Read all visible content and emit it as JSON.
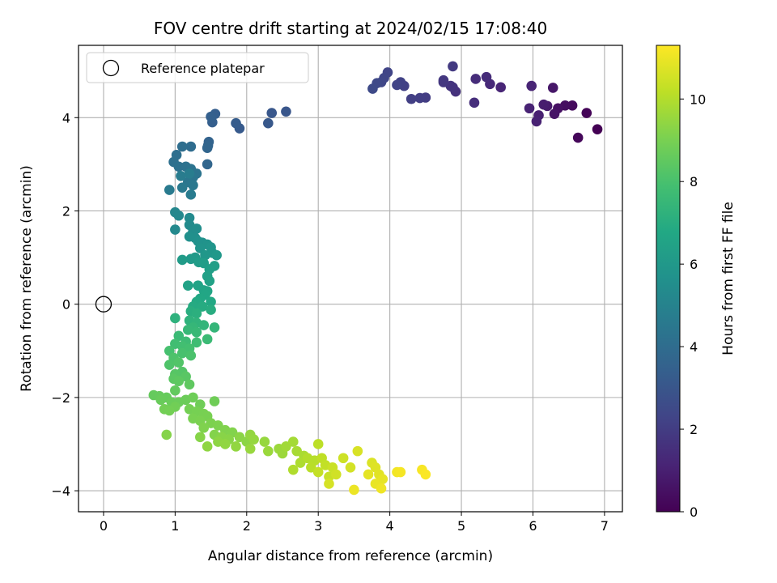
{
  "chart_data": {
    "type": "scatter",
    "title": "FOV centre drift starting at 2024/02/15 17:08:40",
    "xlabel": "Angular distance from reference (arcmin)",
    "ylabel": "Rotation from reference (arcmin)",
    "xlim": [
      -0.35,
      7.25
    ],
    "ylim": [
      -4.45,
      5.55
    ],
    "xticks": [
      0,
      1,
      2,
      3,
      4,
      5,
      6,
      7
    ],
    "yticks": [
      -4,
      -2,
      0,
      2,
      4
    ],
    "grid": true,
    "legend": {
      "placement": "top-left",
      "entries": [
        "Reference platepar"
      ]
    },
    "reference_point": {
      "x": 0,
      "y": 0,
      "label": "Reference platepar"
    },
    "colorbar": {
      "label": "Hours from first FF file",
      "colormap": "viridis",
      "range": [
        0,
        11.3
      ],
      "ticks": [
        0,
        2,
        4,
        6,
        8,
        10
      ]
    },
    "points": [
      [
        6.9,
        3.75,
        0.0
      ],
      [
        6.75,
        4.1,
        0.1
      ],
      [
        6.63,
        3.57,
        0.2
      ],
      [
        6.55,
        4.26,
        0.3
      ],
      [
        6.45,
        4.26,
        0.4
      ],
      [
        6.35,
        4.2,
        0.5
      ],
      [
        6.3,
        4.08,
        0.6
      ],
      [
        6.28,
        4.64,
        0.7
      ],
      [
        6.2,
        4.25,
        0.8
      ],
      [
        6.15,
        4.28,
        0.9
      ],
      [
        6.08,
        4.05,
        1.0
      ],
      [
        6.05,
        3.92,
        1.05
      ],
      [
        5.95,
        4.2,
        1.1
      ],
      [
        5.98,
        4.68,
        1.15
      ],
      [
        5.55,
        4.65,
        1.2
      ],
      [
        5.4,
        4.72,
        1.3
      ],
      [
        5.35,
        4.87,
        1.4
      ],
      [
        5.2,
        4.83,
        1.45
      ],
      [
        5.18,
        4.32,
        1.5
      ],
      [
        4.92,
        4.56,
        1.6
      ],
      [
        4.88,
        4.65,
        1.65
      ],
      [
        4.85,
        4.68,
        1.7
      ],
      [
        4.75,
        4.76,
        1.8
      ],
      [
        4.75,
        4.8,
        1.85
      ],
      [
        4.88,
        5.1,
        1.9
      ],
      [
        4.5,
        4.43,
        2.0
      ],
      [
        4.42,
        4.42,
        2.05
      ],
      [
        4.3,
        4.4,
        2.1
      ],
      [
        4.2,
        4.68,
        2.15
      ],
      [
        4.15,
        4.76,
        2.2
      ],
      [
        4.1,
        4.7,
        2.25
      ],
      [
        3.97,
        4.97,
        2.3
      ],
      [
        3.92,
        4.85,
        2.35
      ],
      [
        3.88,
        4.76,
        2.4
      ],
      [
        3.82,
        4.74,
        2.45
      ],
      [
        3.76,
        4.62,
        2.5
      ],
      [
        2.55,
        4.13,
        3.0
      ],
      [
        2.35,
        4.1,
        3.05
      ],
      [
        2.3,
        3.88,
        3.1
      ],
      [
        1.9,
        3.77,
        3.2
      ],
      [
        1.85,
        3.88,
        3.25
      ],
      [
        1.56,
        4.08,
        3.35
      ],
      [
        1.52,
        3.9,
        3.4
      ],
      [
        1.5,
        4.02,
        3.45
      ],
      [
        1.47,
        3.48,
        3.55
      ],
      [
        1.46,
        3.4,
        3.6
      ],
      [
        1.45,
        3.35,
        3.65
      ],
      [
        1.45,
        3.0,
        3.7
      ],
      [
        1.22,
        3.38,
        4.0
      ],
      [
        1.1,
        3.38,
        4.05
      ],
      [
        1.02,
        3.2,
        4.1
      ],
      [
        0.98,
        3.05,
        4.15
      ],
      [
        1.05,
        2.95,
        4.2
      ],
      [
        1.15,
        2.95,
        4.25
      ],
      [
        1.22,
        2.9,
        4.3
      ],
      [
        1.3,
        2.8,
        4.35
      ],
      [
        1.25,
        2.72,
        4.4
      ],
      [
        1.18,
        2.62,
        4.45
      ],
      [
        1.25,
        2.55,
        4.5
      ],
      [
        1.1,
        2.5,
        4.55
      ],
      [
        0.92,
        2.45,
        4.6
      ],
      [
        1.22,
        2.35,
        4.65
      ],
      [
        1.08,
        2.75,
        4.7
      ],
      [
        1.2,
        2.8,
        4.75
      ],
      [
        1.0,
        1.97,
        5.2
      ],
      [
        1.05,
        1.9,
        5.25
      ],
      [
        1.0,
        1.6,
        5.3
      ],
      [
        1.2,
        1.85,
        5.35
      ],
      [
        1.2,
        1.7,
        5.4
      ],
      [
        1.25,
        1.55,
        5.45
      ],
      [
        1.3,
        1.62,
        5.5
      ],
      [
        1.28,
        1.42,
        5.55
      ],
      [
        1.2,
        1.45,
        5.6
      ],
      [
        1.32,
        1.35,
        5.65
      ],
      [
        1.38,
        1.32,
        5.7
      ],
      [
        1.45,
        1.28,
        5.75
      ],
      [
        1.35,
        1.2,
        5.8
      ],
      [
        1.5,
        1.22,
        5.85
      ],
      [
        1.52,
        1.1,
        5.9
      ],
      [
        1.42,
        1.05,
        5.95
      ],
      [
        1.58,
        1.05,
        6.0
      ],
      [
        1.28,
        1.0,
        6.05
      ],
      [
        1.22,
        0.97,
        6.1
      ],
      [
        1.1,
        0.95,
        6.15
      ],
      [
        1.33,
        0.9,
        6.2
      ],
      [
        1.4,
        0.88,
        6.25
      ],
      [
        1.55,
        0.82,
        6.3
      ],
      [
        1.48,
        0.75,
        6.35
      ],
      [
        1.45,
        0.6,
        6.4
      ],
      [
        1.48,
        0.5,
        6.45
      ],
      [
        1.18,
        0.4,
        6.5
      ],
      [
        1.32,
        0.4,
        6.55
      ],
      [
        1.4,
        0.3,
        6.6
      ],
      [
        1.45,
        0.28,
        6.65
      ],
      [
        1.42,
        0.2,
        6.7
      ],
      [
        1.35,
        0.12,
        6.75
      ],
      [
        1.5,
        0.05,
        6.8
      ],
      [
        1.3,
        0.05,
        6.85
      ],
      [
        1.25,
        -0.05,
        6.9
      ],
      [
        1.38,
        -0.05,
        6.95
      ],
      [
        1.5,
        -0.12,
        7.0
      ],
      [
        1.22,
        -0.15,
        7.05
      ],
      [
        1.3,
        -0.2,
        7.1
      ],
      [
        1.0,
        -0.3,
        7.2
      ],
      [
        1.2,
        -0.35,
        7.25
      ],
      [
        1.3,
        -0.4,
        7.3
      ],
      [
        1.4,
        -0.45,
        7.35
      ],
      [
        1.55,
        -0.5,
        7.4
      ],
      [
        1.25,
        -0.5,
        7.45
      ],
      [
        1.18,
        -0.55,
        7.5
      ],
      [
        1.3,
        -0.6,
        7.55
      ],
      [
        1.05,
        -0.68,
        7.6
      ],
      [
        1.45,
        -0.75,
        7.65
      ],
      [
        1.15,
        -0.8,
        7.7
      ],
      [
        1.3,
        -0.82,
        7.75
      ],
      [
        1.0,
        -0.85,
        7.8
      ],
      [
        1.1,
        -0.9,
        7.85
      ],
      [
        1.2,
        -0.95,
        7.9
      ],
      [
        0.92,
        -1.0,
        7.95
      ],
      [
        1.1,
        -1.05,
        8.0
      ],
      [
        1.22,
        -1.1,
        8.05
      ],
      [
        0.98,
        -1.15,
        8.1
      ],
      [
        0.92,
        -1.3,
        8.15
      ],
      [
        1.05,
        -1.25,
        8.2
      ],
      [
        1.1,
        -1.45,
        8.25
      ],
      [
        1.0,
        -1.5,
        8.3
      ],
      [
        1.15,
        -1.55,
        8.35
      ],
      [
        0.98,
        -1.6,
        8.4
      ],
      [
        1.05,
        -1.65,
        8.45
      ],
      [
        1.2,
        -1.72,
        8.5
      ],
      [
        1.0,
        -1.85,
        8.55
      ],
      [
        0.7,
        -1.95,
        8.6
      ],
      [
        0.78,
        -1.97,
        8.62
      ],
      [
        0.88,
        -2.0,
        8.65
      ],
      [
        0.8,
        -2.05,
        8.68
      ],
      [
        0.95,
        -2.1,
        8.7
      ],
      [
        1.05,
        -2.1,
        8.72
      ],
      [
        1.15,
        -2.05,
        8.75
      ],
      [
        1.25,
        -2.0,
        8.78
      ],
      [
        1.35,
        -2.15,
        8.8
      ],
      [
        1.55,
        -2.08,
        8.82
      ],
      [
        1.0,
        -2.2,
        8.85
      ],
      [
        0.85,
        -2.25,
        8.88
      ],
      [
        0.92,
        -2.28,
        8.9
      ],
      [
        1.2,
        -2.25,
        8.92
      ],
      [
        1.3,
        -2.3,
        8.95
      ],
      [
        1.4,
        -2.35,
        8.98
      ],
      [
        1.45,
        -2.4,
        9.0
      ],
      [
        1.25,
        -2.45,
        9.02
      ],
      [
        1.35,
        -2.5,
        9.05
      ],
      [
        1.5,
        -2.55,
        9.08
      ],
      [
        1.6,
        -2.6,
        9.1
      ],
      [
        1.4,
        -2.65,
        9.12
      ],
      [
        1.7,
        -2.7,
        9.15
      ],
      [
        1.8,
        -2.75,
        9.18
      ],
      [
        1.55,
        -2.8,
        9.2
      ],
      [
        0.88,
        -2.8,
        9.22
      ],
      [
        1.35,
        -2.85,
        9.25
      ],
      [
        1.65,
        -2.85,
        9.28
      ],
      [
        1.75,
        -2.9,
        9.3
      ],
      [
        1.9,
        -2.85,
        9.32
      ],
      [
        2.0,
        -2.95,
        9.35
      ],
      [
        1.6,
        -2.95,
        9.38
      ],
      [
        1.45,
        -3.05,
        9.4
      ],
      [
        1.7,
        -3.0,
        9.42
      ],
      [
        1.85,
        -3.05,
        9.45
      ],
      [
        2.05,
        -2.8,
        9.48
      ],
      [
        2.1,
        -2.9,
        9.5
      ],
      [
        2.25,
        -2.95,
        9.52
      ],
      [
        2.05,
        -3.1,
        9.55
      ],
      [
        2.3,
        -3.15,
        9.58
      ],
      [
        2.45,
        -3.1,
        9.6
      ],
      [
        2.5,
        -3.2,
        9.62
      ],
      [
        2.55,
        -3.05,
        9.7
      ],
      [
        2.65,
        -2.95,
        9.75
      ],
      [
        2.7,
        -3.15,
        9.8
      ],
      [
        2.8,
        -3.25,
        9.85
      ],
      [
        2.75,
        -3.4,
        9.9
      ],
      [
        2.65,
        -3.55,
        9.95
      ],
      [
        2.85,
        -3.3,
        10.0
      ],
      [
        2.95,
        -3.35,
        10.05
      ],
      [
        2.9,
        -3.5,
        10.1
      ],
      [
        3.0,
        -3.0,
        10.15
      ],
      [
        3.05,
        -3.3,
        10.2
      ],
      [
        3.1,
        -3.45,
        10.25
      ],
      [
        3.0,
        -3.6,
        10.3
      ],
      [
        3.15,
        -3.7,
        10.35
      ],
      [
        3.2,
        -3.5,
        10.4
      ],
      [
        3.35,
        -3.3,
        10.45
      ],
      [
        3.25,
        -3.65,
        10.5
      ],
      [
        3.45,
        -3.5,
        10.55
      ],
      [
        3.15,
        -3.85,
        10.6
      ],
      [
        3.55,
        -3.15,
        10.65
      ],
      [
        3.75,
        -3.4,
        10.7
      ],
      [
        3.8,
        -3.5,
        10.75
      ],
      [
        3.85,
        -3.65,
        10.8
      ],
      [
        3.7,
        -3.65,
        10.85
      ],
      [
        3.9,
        -3.75,
        10.9
      ],
      [
        3.8,
        -3.85,
        10.95
      ],
      [
        3.5,
        -3.98,
        11.0
      ],
      [
        3.88,
        -3.95,
        11.05
      ],
      [
        4.1,
        -3.6,
        11.1
      ],
      [
        4.15,
        -3.6,
        11.15
      ],
      [
        4.45,
        -3.55,
        11.2
      ],
      [
        4.5,
        -3.65,
        11.25
      ]
    ]
  }
}
